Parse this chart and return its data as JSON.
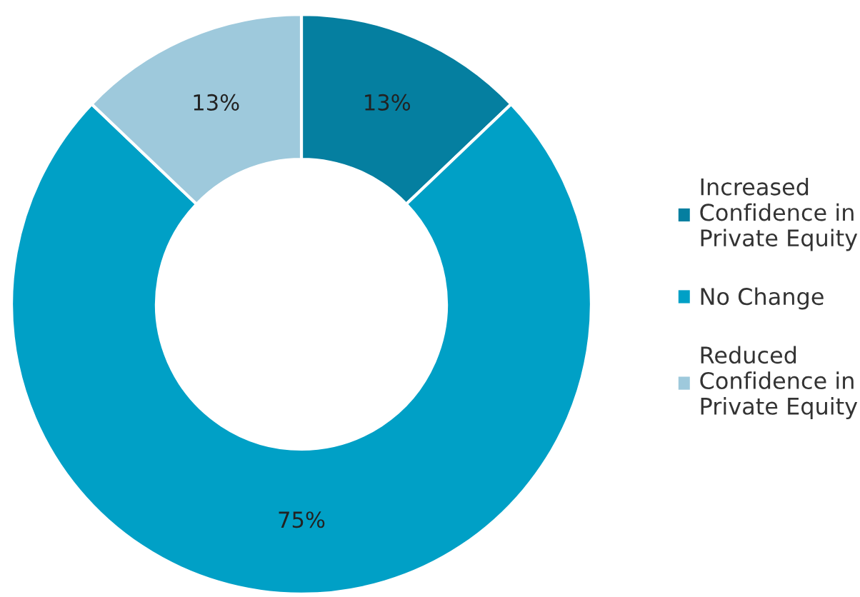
{
  "chart_data": {
    "type": "donut",
    "categories": [
      "Increased\nConfidence in\nPrivate Equity",
      "No Change",
      "Reduced\nConfidence in\nPrivate Equity"
    ],
    "values": [
      13,
      75,
      13
    ],
    "colors": [
      "#057fa0",
      "#00a0c6",
      "#9ec9dc"
    ],
    "value_labels": [
      "13%",
      "75%",
      "13%"
    ],
    "legend": "right"
  }
}
